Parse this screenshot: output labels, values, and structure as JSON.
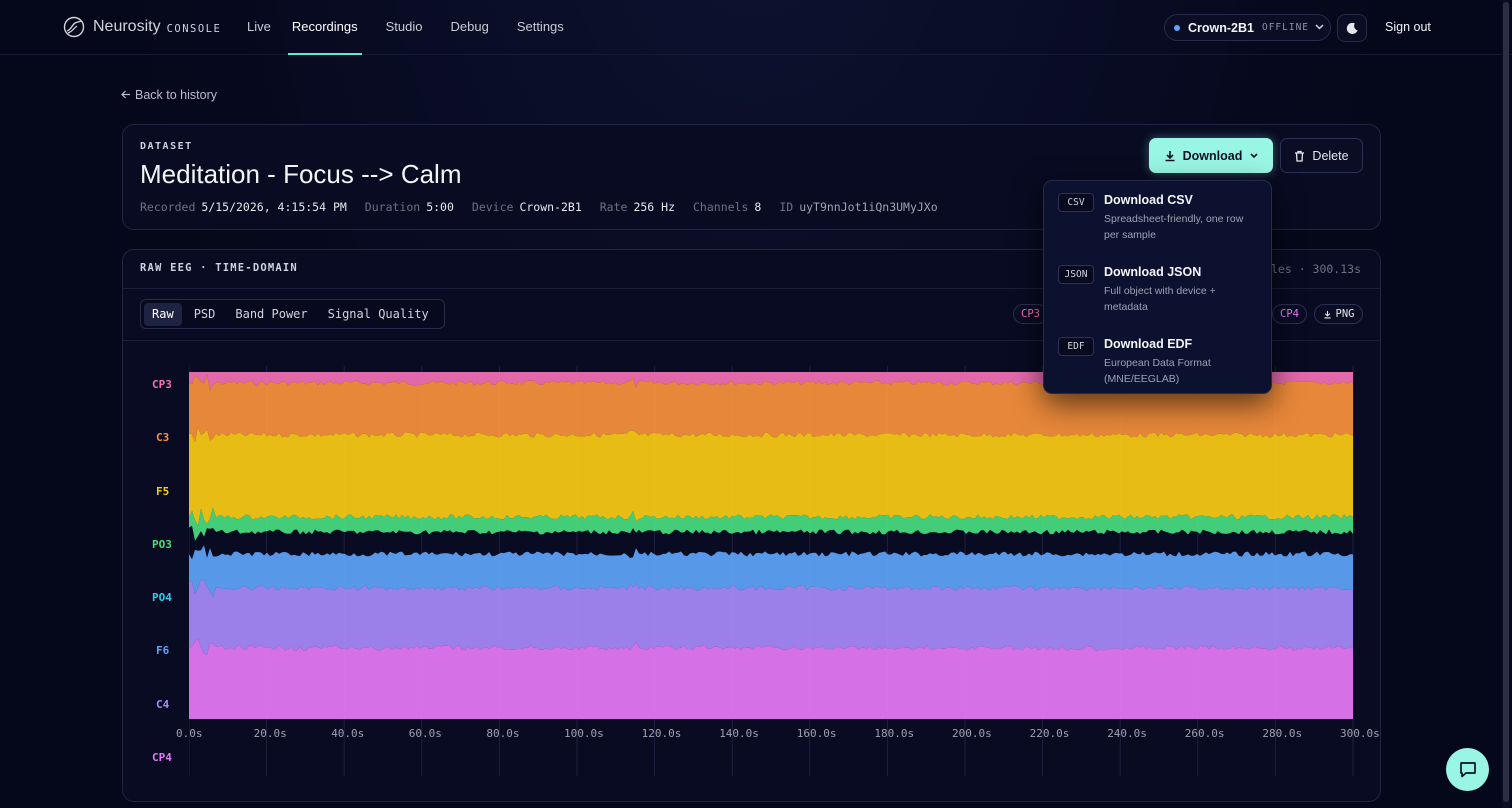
{
  "header": {
    "brand": "Neurosity",
    "brand_suffix": "CONSOLE",
    "nav": [
      {
        "label": "Live",
        "active": false
      },
      {
        "label": "Recordings",
        "active": true
      },
      {
        "label": "Studio",
        "active": false
      },
      {
        "label": "Debug",
        "active": false
      },
      {
        "label": "Settings",
        "active": false
      }
    ],
    "device_name": "Crown-2B1",
    "device_status": "OFFLINE",
    "sign_out": "Sign out"
  },
  "back_link": "Back to history",
  "dataset": {
    "label": "DATASET",
    "title": "Meditation - Focus --> Calm",
    "meta": {
      "recorded_label": "Recorded",
      "recorded": "5/15/2026, 4:15:54 PM",
      "duration_label": "Duration",
      "duration": "5:00",
      "device_label": "Device",
      "device": "Crown-2B1",
      "rate_label": "Rate",
      "rate": "256 Hz",
      "channels_label": "Channels",
      "channels": "8",
      "id_label": "ID",
      "id": "uyT9nnJot1iQn3UMyJXo"
    },
    "download_label": "Download",
    "delete_label": "Delete"
  },
  "download_menu": [
    {
      "badge": "CSV",
      "title": "Download CSV",
      "desc": "Spreadsheet-friendly, one row per sample"
    },
    {
      "badge": "JSON",
      "title": "Download JSON",
      "desc": "Full object with device + metadata"
    },
    {
      "badge": "EDF",
      "title": "Download EDF",
      "desc": "European Data Format (MNE/EEGLAB)"
    }
  ],
  "chart_panel": {
    "title": "RAW EEG · TIME-DOMAIN",
    "samples_text": "les · 300.13s",
    "tabs": [
      {
        "label": "Raw",
        "active": true
      },
      {
        "label": "PSD",
        "active": false
      },
      {
        "label": "Band Power",
        "active": false
      },
      {
        "label": "Signal Quality",
        "active": false
      }
    ],
    "chip_left": "CP3",
    "chip_right": "CP4",
    "png_label": "PNG"
  },
  "colors": {
    "accent": "#99f6e4",
    "CP3": "#f472b6",
    "C3": "#fb923c",
    "F5": "#facc15",
    "PO3": "#4ade80",
    "PO4": "#22d3ee",
    "F6": "#60a5fa",
    "C4": "#a78bfa",
    "CP4": "#e879f9"
  },
  "chart_data": {
    "type": "area",
    "title": "",
    "xlabel": "",
    "ylabel": "",
    "xlim": [
      0,
      300
    ],
    "x_ticks": [
      "0.0s",
      "20.0s",
      "40.0s",
      "60.0s",
      "80.0s",
      "100.0s",
      "120.0s",
      "140.0s",
      "160.0s",
      "180.0s",
      "200.0s",
      "220.0s",
      "240.0s",
      "260.0s",
      "280.0s",
      "300.0s"
    ],
    "channels": [
      "CP3",
      "C3",
      "F5",
      "PO3",
      "PO4",
      "F6",
      "C4",
      "CP4"
    ],
    "grid": true,
    "legend": "none"
  }
}
